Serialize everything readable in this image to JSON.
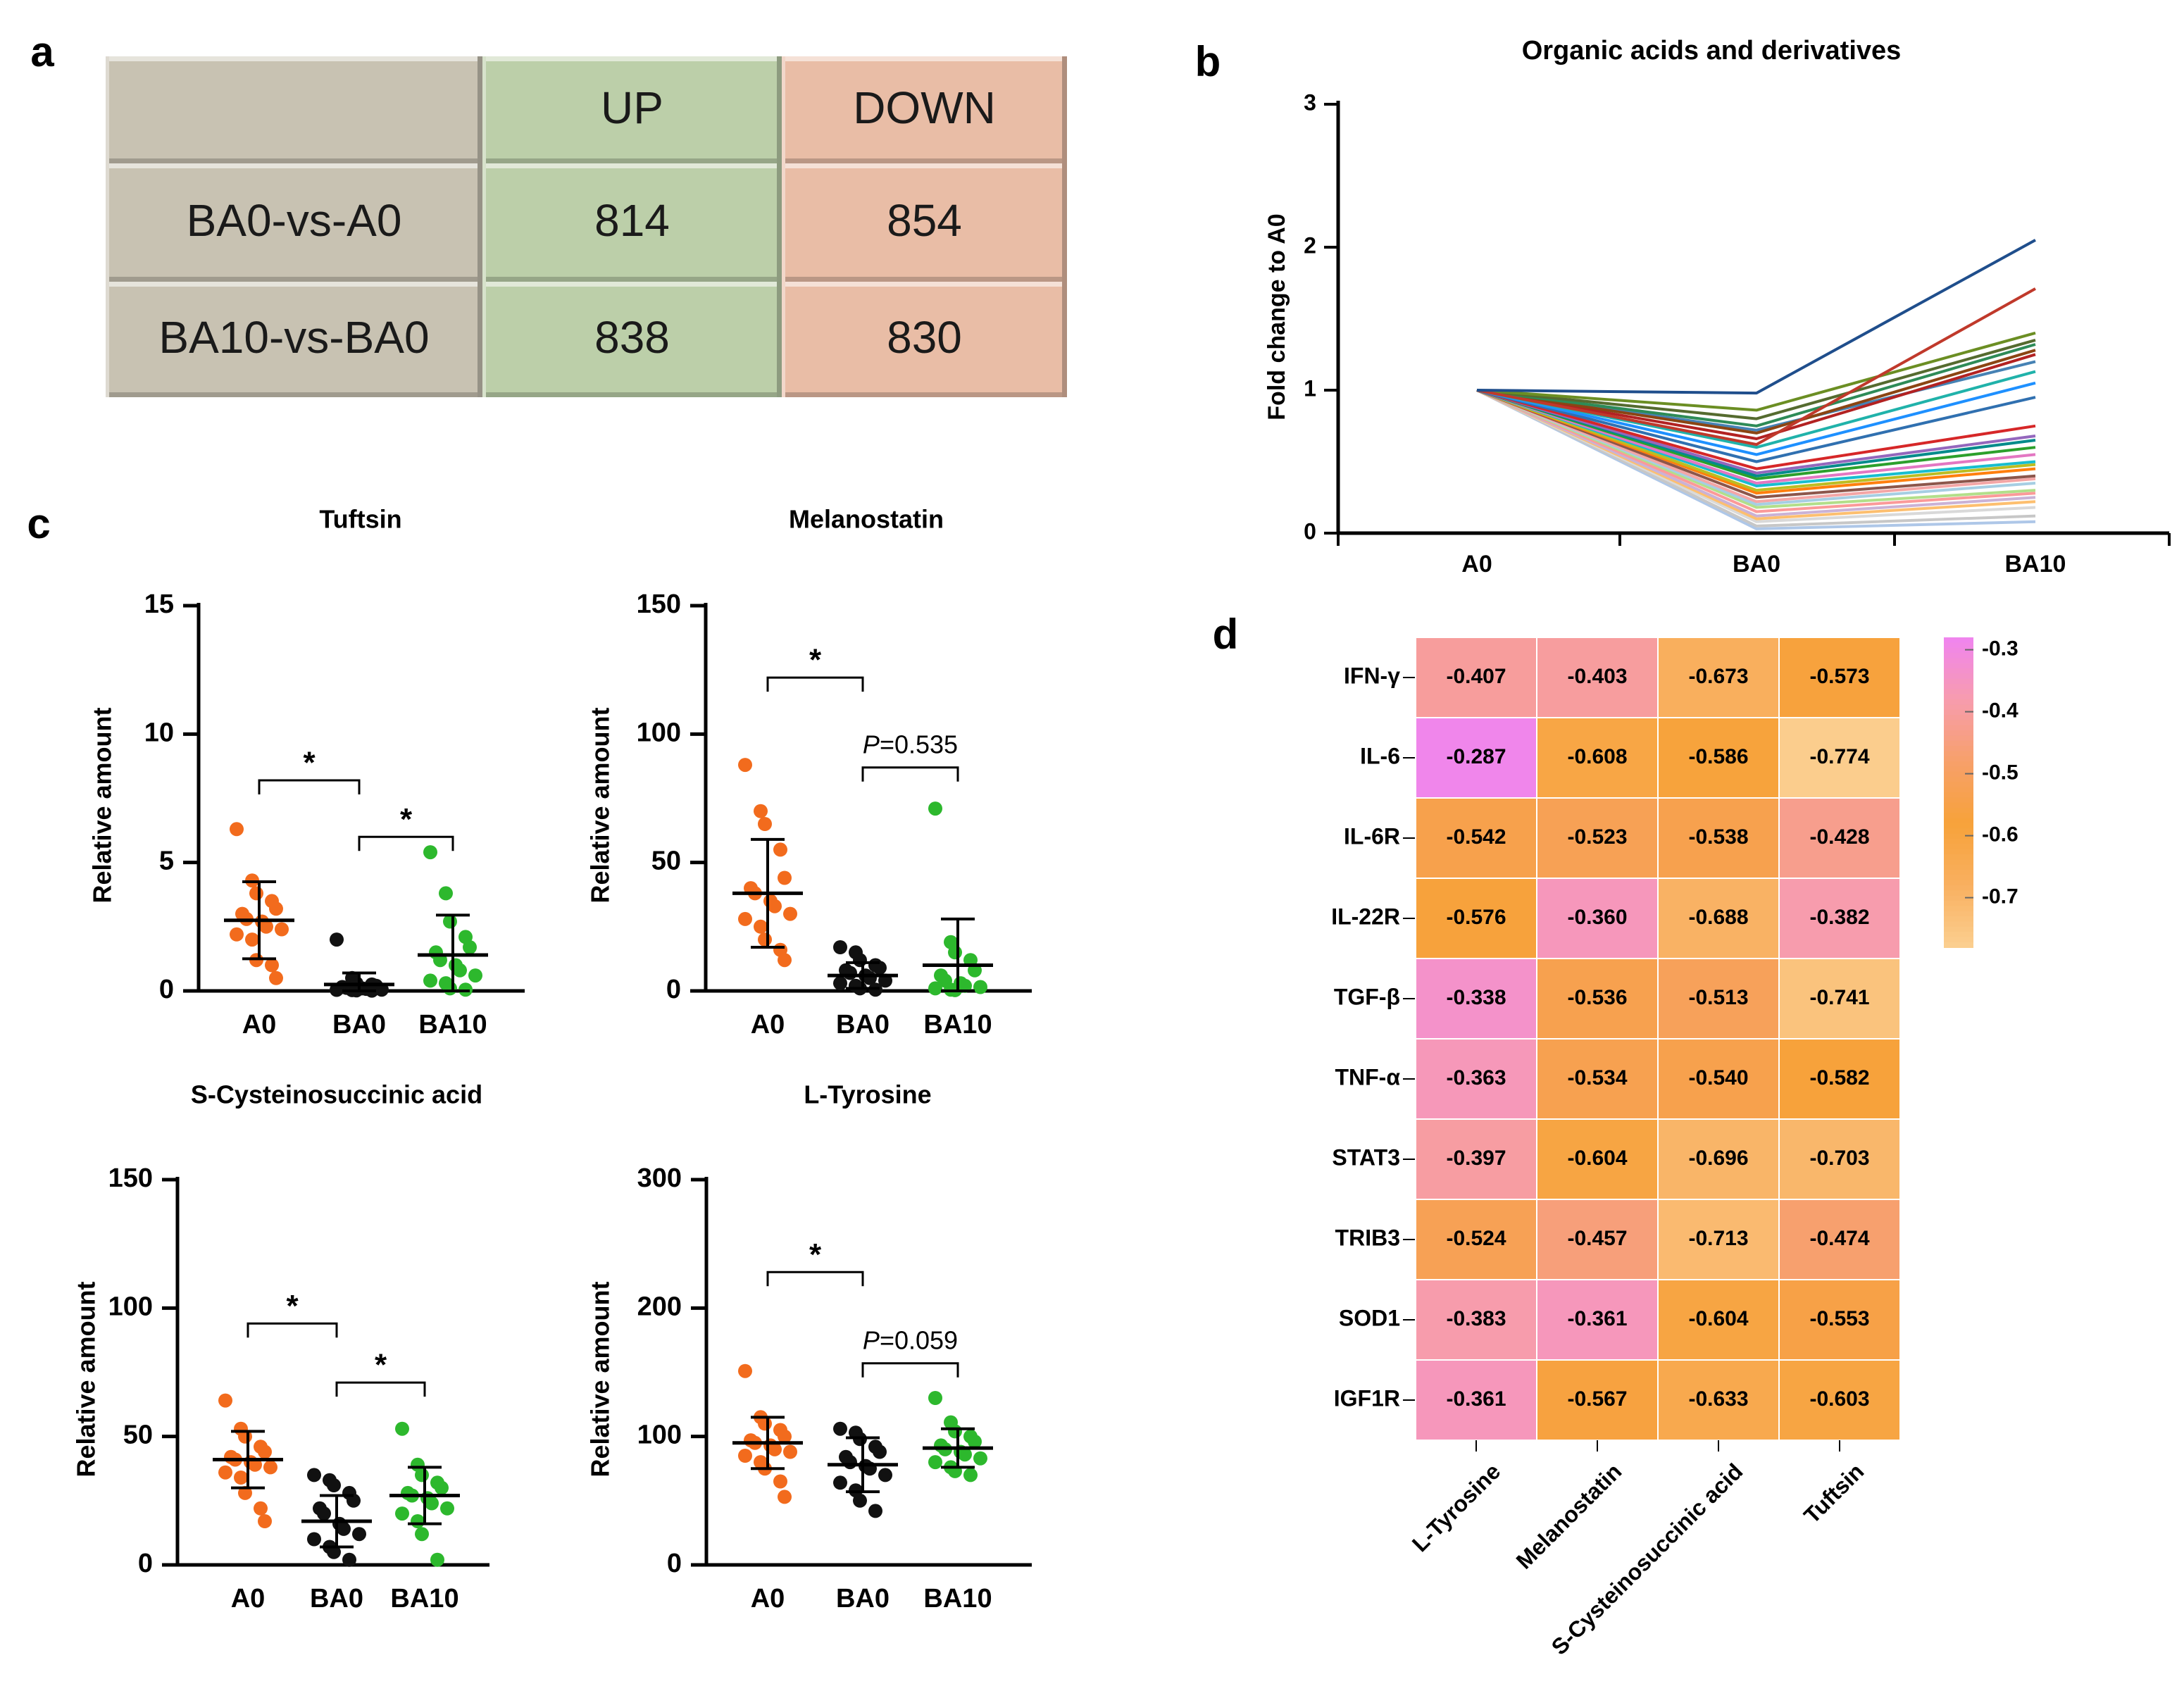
{
  "panel_labels": {
    "a": "a",
    "b": "b",
    "c": "c",
    "d": "d"
  },
  "stats": {
    "sig": "*",
    "p_prefix": "P",
    "p_rest_melanostatin": "=0.535",
    "p_rest_tyrosine": "=0.059"
  },
  "chart_data": [
    {
      "type": "table",
      "id": "a",
      "columns": [
        "",
        "UP",
        "DOWN"
      ],
      "rows": [
        [
          "BA0-vs-A0",
          "814",
          "854"
        ],
        [
          "BA10-vs-BA0",
          "838",
          "830"
        ]
      ],
      "colors": {
        "label": "#c8c2b2",
        "up": "#bccfa9",
        "down": "#e9bda6"
      }
    },
    {
      "type": "line",
      "id": "b",
      "title": "Organic acids and derivatives",
      "ylabel": "Fold change to A0",
      "categories": [
        "A0",
        "BA0",
        "BA10"
      ],
      "ylim": [
        0,
        3
      ],
      "yticks": [
        "0",
        "1",
        "2",
        "3"
      ],
      "series": [
        {
          "name": "s1",
          "color": "#1f4e8c",
          "values": [
            1,
            0.98,
            2.05
          ]
        },
        {
          "name": "s2",
          "color": "#c0392b",
          "values": [
            1,
            0.62,
            1.71
          ]
        },
        {
          "name": "s3",
          "color": "#6b8e23",
          "values": [
            1,
            0.86,
            1.4
          ]
        },
        {
          "name": "s4",
          "color": "#556b2f",
          "values": [
            1,
            0.8,
            1.35
          ]
        },
        {
          "name": "s5",
          "color": "#2e8b57",
          "values": [
            1,
            0.75,
            1.32
          ]
        },
        {
          "name": "s6",
          "color": "#8b4513",
          "values": [
            1,
            0.7,
            1.28
          ]
        },
        {
          "name": "s7",
          "color": "#b22222",
          "values": [
            1,
            0.66,
            1.25
          ]
        },
        {
          "name": "s8",
          "color": "#4682b4",
          "values": [
            1,
            0.72,
            1.2
          ]
        },
        {
          "name": "s9",
          "color": "#20b2aa",
          "values": [
            1,
            0.6,
            1.13
          ]
        },
        {
          "name": "s10",
          "color": "#1e90ff",
          "values": [
            1,
            0.55,
            1.05
          ]
        },
        {
          "name": "s11",
          "color": "#3070b0",
          "values": [
            1,
            0.5,
            0.95
          ]
        },
        {
          "name": "s12",
          "color": "#d62728",
          "values": [
            1,
            0.45,
            0.75
          ]
        },
        {
          "name": "s13",
          "color": "#9467bd",
          "values": [
            1,
            0.42,
            0.68
          ]
        },
        {
          "name": "s14",
          "color": "#008b8b",
          "values": [
            1,
            0.4,
            0.65
          ]
        },
        {
          "name": "s15",
          "color": "#2ca02c",
          "values": [
            1,
            0.38,
            0.6
          ]
        },
        {
          "name": "s16",
          "color": "#e377c2",
          "values": [
            1,
            0.35,
            0.55
          ]
        },
        {
          "name": "s17",
          "color": "#17becf",
          "values": [
            1,
            0.33,
            0.5
          ]
        },
        {
          "name": "s18",
          "color": "#bcbd22",
          "values": [
            1,
            0.3,
            0.48
          ]
        },
        {
          "name": "s19",
          "color": "#ff7f0e",
          "values": [
            1,
            0.28,
            0.45
          ]
        },
        {
          "name": "s20",
          "color": "#8c564b",
          "values": [
            1,
            0.25,
            0.4
          ]
        },
        {
          "name": "s21",
          "color": "#f4a6a6",
          "values": [
            1,
            0.22,
            0.38
          ]
        },
        {
          "name": "s22",
          "color": "#a6cee3",
          "values": [
            1,
            0.2,
            0.35
          ]
        },
        {
          "name": "s23",
          "color": "#b2df8a",
          "values": [
            1,
            0.18,
            0.3
          ]
        },
        {
          "name": "s24",
          "color": "#fb9a99",
          "values": [
            1,
            0.15,
            0.28
          ]
        },
        {
          "name": "s25",
          "color": "#cab2d6",
          "values": [
            1,
            0.12,
            0.25
          ]
        },
        {
          "name": "s26",
          "color": "#fdbf6f",
          "values": [
            1,
            0.1,
            0.22
          ]
        },
        {
          "name": "s27",
          "color": "#d9d9d9",
          "values": [
            1,
            0.08,
            0.18
          ]
        },
        {
          "name": "s28",
          "color": "#c7c7c7",
          "values": [
            1,
            0.05,
            0.12
          ]
        },
        {
          "name": "s29",
          "color": "#aec7e8",
          "values": [
            1,
            0.03,
            0.08
          ]
        }
      ]
    },
    {
      "type": "scatter",
      "id": "c1",
      "title": "Tuftsin",
      "ylabel": "Relative amount",
      "categories": [
        "A0",
        "BA0",
        "BA10"
      ],
      "ylim": [
        0,
        15
      ],
      "yticks": [
        "0",
        "5",
        "10",
        "15"
      ],
      "groups": [
        {
          "name": "A0",
          "color": "#f26b1d",
          "mean": 2.75,
          "sd": 1.5,
          "points": [
            6.3,
            4.3,
            3.8,
            3.5,
            3.2,
            3.0,
            2.8,
            2.7,
            2.5,
            2.4,
            2.2,
            2.0,
            1.2,
            1.0,
            0.5
          ]
        },
        {
          "name": "BA0",
          "color": "#111111",
          "mean": 0.25,
          "sd": 0.45,
          "points": [
            2.0,
            0.5,
            0.3,
            0.25,
            0.2,
            0.15,
            0.12,
            0.1,
            0.08,
            0.05,
            0.04,
            0.03,
            0.02,
            0.01
          ]
        },
        {
          "name": "BA10",
          "color": "#2db82d",
          "mean": 1.4,
          "sd": 1.55,
          "points": [
            5.4,
            3.8,
            2.7,
            2.1,
            1.7,
            1.5,
            1.2,
            1.0,
            0.8,
            0.6,
            0.4,
            0.3,
            0.1,
            0.05
          ]
        }
      ],
      "brackets": [
        {
          "from": 0,
          "to": 1,
          "y": 8.2,
          "label": "*"
        },
        {
          "from": 1,
          "to": 2,
          "y": 6.0,
          "label": "*"
        }
      ]
    },
    {
      "type": "scatter",
      "id": "c2",
      "title": "Melanostatin",
      "ylabel": "Relative amount",
      "categories": [
        "A0",
        "BA0",
        "BA10"
      ],
      "ylim": [
        0,
        150
      ],
      "yticks": [
        "0",
        "50",
        "100",
        "150"
      ],
      "groups": [
        {
          "name": "A0",
          "color": "#f26b1d",
          "mean": 38,
          "sd": 21,
          "points": [
            88,
            70,
            65,
            55,
            44,
            40,
            38,
            35,
            33,
            30,
            28,
            25,
            20,
            16,
            12
          ]
        },
        {
          "name": "BA0",
          "color": "#111111",
          "mean": 6,
          "sd": 5,
          "points": [
            17,
            15,
            12,
            10,
            9,
            8,
            7,
            6,
            5,
            4,
            3,
            2,
            1,
            0.5
          ]
        },
        {
          "name": "BA10",
          "color": "#2db82d",
          "mean": 10,
          "sd": 18,
          "points": [
            71,
            19,
            15,
            12,
            8,
            6,
            4,
            3,
            2,
            1.5,
            1,
            0.5,
            0.3
          ]
        }
      ],
      "brackets": [
        {
          "from": 0,
          "to": 1,
          "y": 122,
          "label": "*"
        },
        {
          "from": 1,
          "to": 2,
          "y": 87,
          "label": "P=0.535",
          "italic_prefix": true
        }
      ]
    },
    {
      "type": "scatter",
      "id": "c3",
      "title": "S-Cysteinosuccinic acid",
      "ylabel": "Relative amount",
      "categories": [
        "A0",
        "BA0",
        "BA10"
      ],
      "ylim": [
        0,
        150
      ],
      "yticks": [
        "0",
        "50",
        "100",
        "150"
      ],
      "groups": [
        {
          "name": "A0",
          "color": "#f26b1d",
          "mean": 41,
          "sd": 11,
          "points": [
            64,
            53,
            50,
            46,
            44,
            42,
            41,
            40,
            39,
            38,
            36,
            34,
            28,
            22,
            17
          ]
        },
        {
          "name": "BA0",
          "color": "#111111",
          "mean": 17,
          "sd": 10,
          "points": [
            35,
            33,
            31,
            28,
            25,
            22,
            20,
            16,
            14,
            12,
            10,
            7,
            5,
            2
          ]
        },
        {
          "name": "BA10",
          "color": "#2db82d",
          "mean": 27,
          "sd": 11,
          "points": [
            53,
            39,
            35,
            32,
            30,
            28,
            27,
            26,
            24,
            22,
            20,
            17,
            12,
            2
          ]
        }
      ],
      "brackets": [
        {
          "from": 0,
          "to": 1,
          "y": 94,
          "label": "*"
        },
        {
          "from": 1,
          "to": 2,
          "y": 71,
          "label": "*"
        }
      ]
    },
    {
      "type": "scatter",
      "id": "c4",
      "title": "L-Tyrosine",
      "ylabel": "Relative amount",
      "categories": [
        "A0",
        "BA0",
        "BA10"
      ],
      "ylim": [
        0,
        300
      ],
      "yticks": [
        "0",
        "100",
        "200",
        "300"
      ],
      "groups": [
        {
          "name": "A0",
          "color": "#f26b1d",
          "mean": 95,
          "sd": 20,
          "points": [
            151,
            115,
            110,
            105,
            100,
            97,
            95,
            93,
            90,
            88,
            85,
            80,
            75,
            65,
            53
          ]
        },
        {
          "name": "BA0",
          "color": "#111111",
          "mean": 78,
          "sd": 21,
          "points": [
            106,
            103,
            98,
            92,
            88,
            84,
            80,
            77,
            75,
            70,
            64,
            58,
            50,
            42
          ]
        },
        {
          "name": "BA10",
          "color": "#2db82d",
          "mean": 91,
          "sd": 15,
          "points": [
            130,
            111,
            104,
            100,
            96,
            93,
            90,
            88,
            86,
            83,
            80,
            76,
            73,
            70
          ]
        }
      ],
      "brackets": [
        {
          "from": 0,
          "to": 1,
          "y": 228,
          "label": "*"
        },
        {
          "from": 1,
          "to": 2,
          "y": 157,
          "label": "P=0.059",
          "italic_prefix": true
        }
      ]
    },
    {
      "type": "heatmap",
      "id": "d",
      "rows": [
        "IFN-γ",
        "IL-6",
        "IL-6R",
        "IL-22R",
        "TGF-β",
        "TNF-α",
        "STAT3",
        "TRIB3",
        "SOD1",
        "IGF1R"
      ],
      "columns": [
        "L-Tyrosine",
        "Melanostatin",
        "S-Cysteinosuccinic acid",
        "Tuftsin"
      ],
      "values": [
        [
          -0.407,
          -0.403,
          -0.673,
          -0.573
        ],
        [
          -0.287,
          -0.608,
          -0.586,
          -0.774
        ],
        [
          -0.542,
          -0.523,
          -0.538,
          -0.428
        ],
        [
          -0.576,
          -0.36,
          -0.688,
          -0.382
        ],
        [
          -0.338,
          -0.536,
          -0.513,
          -0.741
        ],
        [
          -0.363,
          -0.534,
          -0.54,
          -0.582
        ],
        [
          -0.397,
          -0.604,
          -0.696,
          -0.703
        ],
        [
          -0.524,
          -0.457,
          -0.713,
          -0.474
        ],
        [
          -0.383,
          -0.361,
          -0.604,
          -0.553
        ],
        [
          -0.361,
          -0.567,
          -0.633,
          -0.603
        ]
      ],
      "labels": [
        [
          "-0.407",
          "-0.403",
          "-0.673",
          "-0.573"
        ],
        [
          "-0.287",
          "-0.608",
          "-0.586",
          "-0.774"
        ],
        [
          "-0.542",
          "-0.523",
          "-0.538",
          "-0.428"
        ],
        [
          "-0.576",
          "-0.360",
          "-0.688",
          "-0.382"
        ],
        [
          "-0.338",
          "-0.536",
          "-0.513",
          "-0.741"
        ],
        [
          "-0.363",
          "-0.534",
          "-0.540",
          "-0.582"
        ],
        [
          "-0.397",
          "-0.604",
          "-0.696",
          "-0.703"
        ],
        [
          "-0.524",
          "-0.457",
          "-0.713",
          "-0.474"
        ],
        [
          "-0.383",
          "-0.361",
          "-0.604",
          "-0.553"
        ],
        [
          "-0.361",
          "-0.567",
          "-0.633",
          "-0.603"
        ]
      ],
      "legend_ticks": [
        "-0.3",
        "-0.4",
        "-0.5",
        "-0.6",
        "-0.7"
      ],
      "color_stops": [
        {
          "v": -0.28,
          "c": "#f084f0"
        },
        {
          "v": -0.38,
          "c": "#f79cae"
        },
        {
          "v": -0.48,
          "c": "#f7a06a"
        },
        {
          "v": -0.58,
          "c": "#f7a23a"
        },
        {
          "v": -0.68,
          "c": "#f9b060"
        },
        {
          "v": -0.78,
          "c": "#fbcf90"
        }
      ]
    }
  ]
}
